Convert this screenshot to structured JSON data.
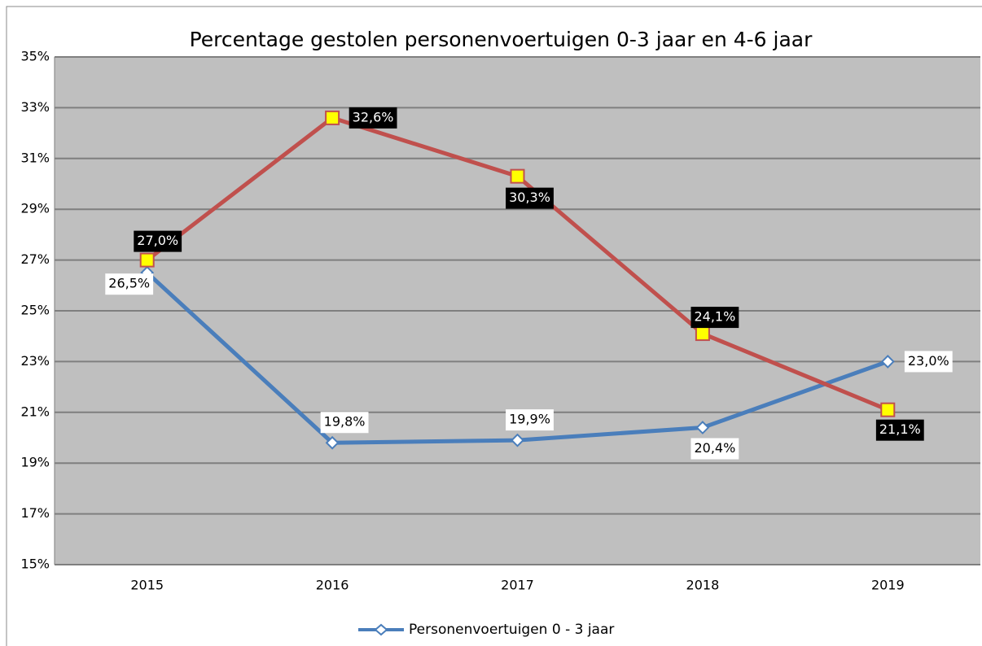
{
  "chart_data": {
    "type": "line",
    "title": "Percentage gestolen personenvoertuigen 0-3 jaar en 4-6 jaar",
    "categories": [
      "2015",
      "2016",
      "2017",
      "2018",
      "2019"
    ],
    "series": [
      {
        "name": "Personenvoertuigen 0 - 3 jaar",
        "color": "#4a7ebb",
        "values": [
          26.5,
          19.8,
          19.9,
          20.4,
          23.0
        ],
        "value_labels": [
          "26,5%",
          "19,8%",
          "19,9%",
          "20,4%",
          "23,0%"
        ]
      },
      {
        "color": "#c0504d",
        "values": [
          27.0,
          32.6,
          30.3,
          24.1,
          21.1
        ],
        "value_labels": [
          "27,0%",
          "32,6%",
          "30,3%",
          "24,1%",
          "21,1%"
        ]
      }
    ],
    "ylim": [
      15,
      35
    ],
    "yticks": [
      {
        "value": 15,
        "label": "15%"
      },
      {
        "value": 17,
        "label": "17%"
      },
      {
        "value": 19,
        "label": "19%"
      },
      {
        "value": 21,
        "label": "21%"
      },
      {
        "value": 23,
        "label": "23%"
      },
      {
        "value": 25,
        "label": "25%"
      },
      {
        "value": 27,
        "label": "27%"
      },
      {
        "value": 29,
        "label": "29%"
      },
      {
        "value": 31,
        "label": "31%"
      },
      {
        "value": 33,
        "label": "33%"
      },
      {
        "value": 35,
        "label": "35%"
      }
    ],
    "grid": true,
    "legend": "bottom"
  }
}
